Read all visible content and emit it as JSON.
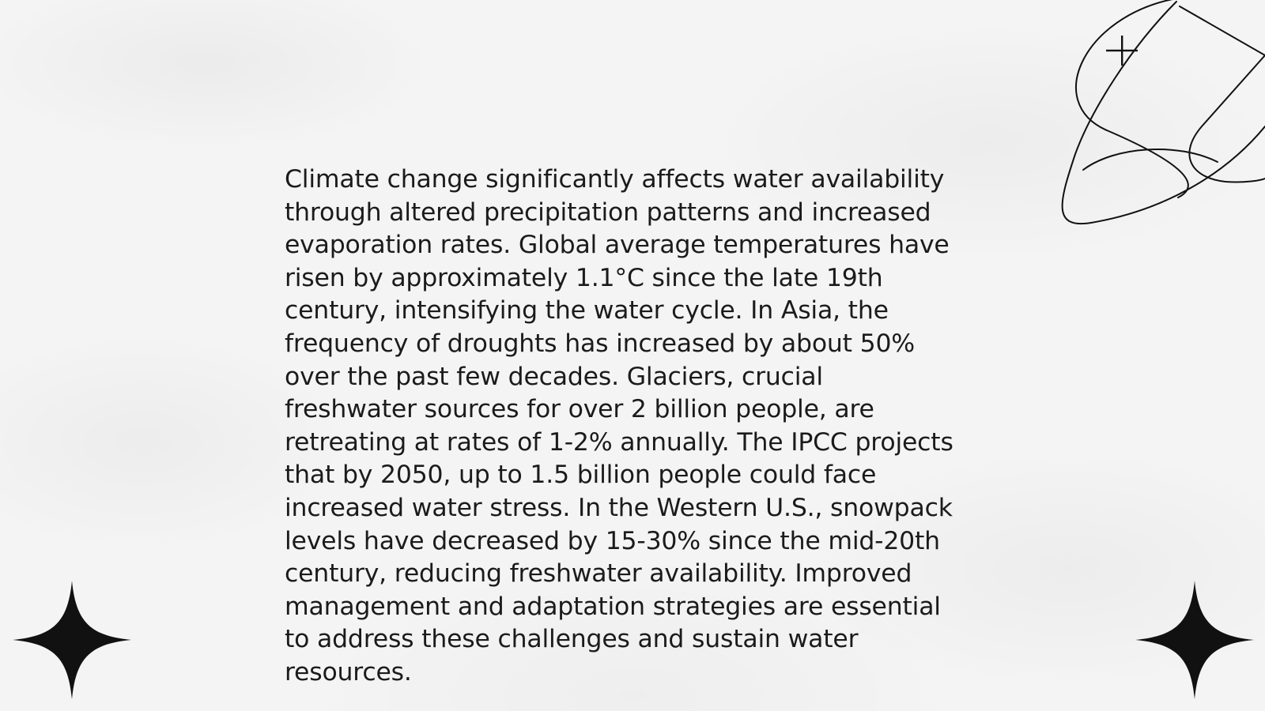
{
  "slide": {
    "body_lines": [
      "Climate change significantly affects water availability",
      "through altered precipitation patterns and increased",
      "evaporation rates. Global average temperatures have",
      "risen by approximately 1.1°C since the late 19th",
      "century, intensifying the water cycle. In Asia, the",
      "frequency of droughts has increased by about 50%",
      "over the past few decades. Glaciers, crucial",
      "freshwater sources for over 2 billion people, are",
      "retreating at rates of 1-2% annually. The IPCC projects",
      "that by 2050, up to 1.5 billion people could face",
      "increased water stress. In the Western U.S., snowpack",
      "levels have decreased by 15-30% since the mid-20th",
      "century, reducing freshwater availability. Improved",
      "management and adaptation strategies are essential",
      "to address these challenges and sustain water",
      "resources."
    ]
  },
  "decorations": {
    "top_right": "orbit-sparkle-icon",
    "bottom_left": "four-point-star-icon",
    "bottom_right": "four-point-star-icon"
  },
  "colors": {
    "background": "#f4f4f4",
    "text": "#1b1b1b",
    "ink": "#111111"
  }
}
